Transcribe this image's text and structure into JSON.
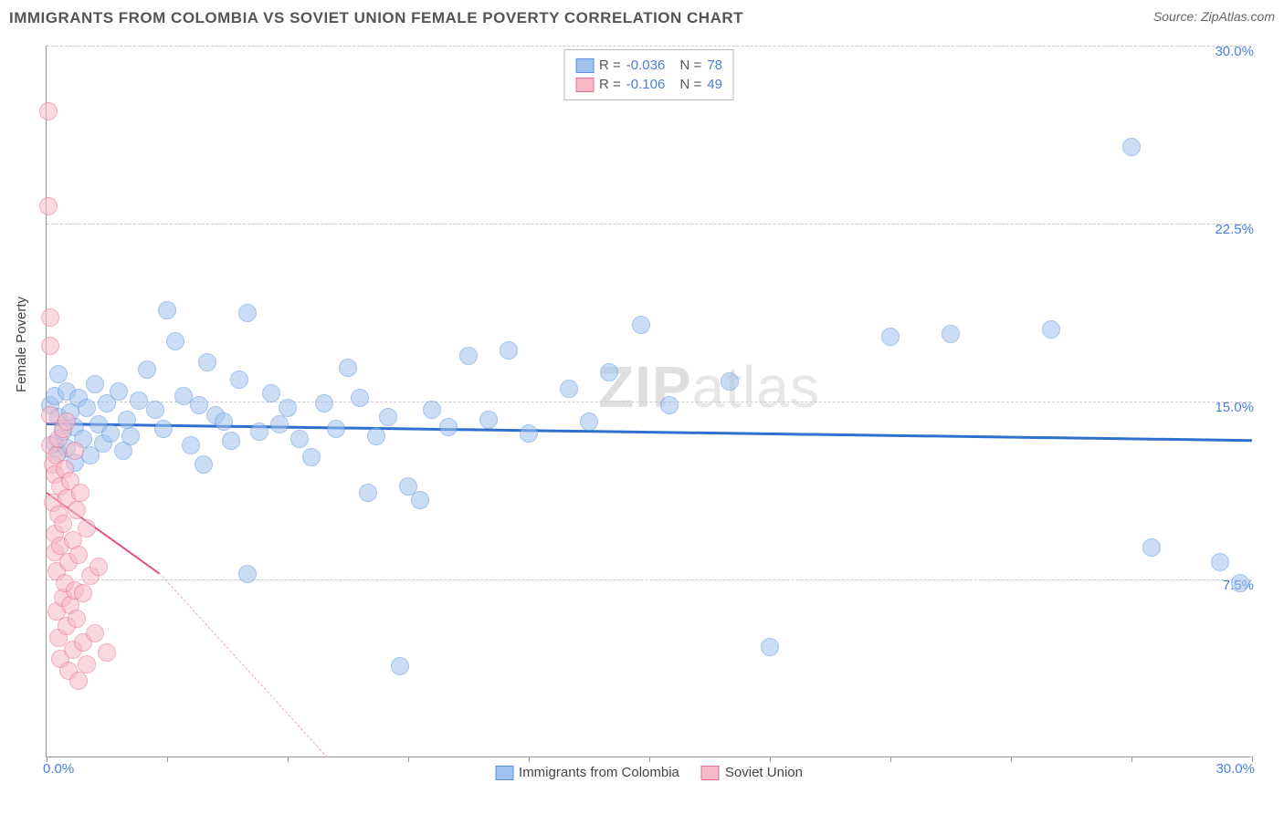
{
  "header": {
    "title": "IMMIGRANTS FROM COLOMBIA VS SOVIET UNION FEMALE POVERTY CORRELATION CHART",
    "source_label": "Source:",
    "source_name": "ZipAtlas.com"
  },
  "watermark": {
    "bold": "ZIP",
    "light": "atlas"
  },
  "chart": {
    "type": "scatter",
    "ylabel": "Female Poverty",
    "xlim": [
      0,
      30
    ],
    "ylim": [
      0,
      30
    ],
    "xtick_min": "0.0%",
    "xtick_max": "30.0%",
    "yticks": [
      {
        "v": 7.5,
        "label": "7.5%"
      },
      {
        "v": 15.0,
        "label": "15.0%"
      },
      {
        "v": 22.5,
        "label": "22.5%"
      },
      {
        "v": 30.0,
        "label": "30.0%"
      }
    ],
    "vticks_x": [
      0,
      3,
      6,
      9,
      12,
      15,
      18,
      21,
      24,
      27,
      30
    ],
    "background_color": "#ffffff",
    "grid_color": "#cccccc",
    "axis_color": "#999999",
    "tick_label_color": "#4a7fd8",
    "marker_radius": 10,
    "marker_opacity": 0.55,
    "series": [
      {
        "id": "colombia",
        "label": "Immigrants from Colombia",
        "fill": "#9fc2ee",
        "stroke": "#5a93dd",
        "R_label": "R =",
        "R": "-0.036",
        "N_label": "N =",
        "N": "78",
        "trend": {
          "x1": 0,
          "y1": 14.1,
          "x2": 30,
          "y2": 13.4,
          "color": "#2f6fd0",
          "width": 3,
          "dash": false
        },
        "points": [
          [
            0.1,
            14.8
          ],
          [
            0.2,
            13.2
          ],
          [
            0.2,
            15.2
          ],
          [
            0.3,
            14.3
          ],
          [
            0.3,
            12.8
          ],
          [
            0.3,
            16.1
          ],
          [
            0.4,
            13.7
          ],
          [
            0.5,
            15.4
          ],
          [
            0.5,
            13.0
          ],
          [
            0.6,
            14.5
          ],
          [
            0.7,
            12.4
          ],
          [
            0.7,
            13.9
          ],
          [
            0.8,
            15.1
          ],
          [
            0.9,
            13.4
          ],
          [
            1.0,
            14.7
          ],
          [
            1.1,
            12.7
          ],
          [
            1.2,
            15.7
          ],
          [
            1.3,
            14.0
          ],
          [
            1.4,
            13.2
          ],
          [
            1.5,
            14.9
          ],
          [
            1.6,
            13.6
          ],
          [
            1.8,
            15.4
          ],
          [
            1.9,
            12.9
          ],
          [
            2.0,
            14.2
          ],
          [
            2.1,
            13.5
          ],
          [
            2.3,
            15.0
          ],
          [
            2.5,
            16.3
          ],
          [
            2.7,
            14.6
          ],
          [
            2.9,
            13.8
          ],
          [
            3.0,
            18.8
          ],
          [
            3.2,
            17.5
          ],
          [
            3.4,
            15.2
          ],
          [
            3.6,
            13.1
          ],
          [
            3.8,
            14.8
          ],
          [
            3.9,
            12.3
          ],
          [
            4.0,
            16.6
          ],
          [
            4.2,
            14.4
          ],
          [
            4.4,
            14.1
          ],
          [
            4.6,
            13.3
          ],
          [
            4.8,
            15.9
          ],
          [
            5.0,
            18.7
          ],
          [
            5.3,
            13.7
          ],
          [
            5.6,
            15.3
          ],
          [
            5.8,
            14.0
          ],
          [
            6.0,
            14.7
          ],
          [
            6.3,
            13.4
          ],
          [
            6.6,
            12.6
          ],
          [
            6.9,
            14.9
          ],
          [
            7.2,
            13.8
          ],
          [
            7.5,
            16.4
          ],
          [
            7.8,
            15.1
          ],
          [
            8.0,
            11.1
          ],
          [
            8.2,
            13.5
          ],
          [
            8.5,
            14.3
          ],
          [
            8.8,
            3.8
          ],
          [
            9.0,
            11.4
          ],
          [
            9.3,
            10.8
          ],
          [
            9.6,
            14.6
          ],
          [
            10.0,
            13.9
          ],
          [
            10.5,
            16.9
          ],
          [
            11.0,
            14.2
          ],
          [
            11.5,
            17.1
          ],
          [
            12.0,
            13.6
          ],
          [
            13.0,
            15.5
          ],
          [
            13.5,
            14.1
          ],
          [
            14.0,
            16.2
          ],
          [
            14.8,
            18.2
          ],
          [
            15.5,
            14.8
          ],
          [
            17.0,
            15.8
          ],
          [
            18.0,
            4.6
          ],
          [
            21.0,
            17.7
          ],
          [
            22.5,
            17.8
          ],
          [
            25.0,
            18.0
          ],
          [
            27.0,
            25.7
          ],
          [
            27.5,
            8.8
          ],
          [
            29.2,
            8.2
          ],
          [
            29.7,
            7.3
          ],
          [
            5.0,
            7.7
          ]
        ]
      },
      {
        "id": "soviet",
        "label": "Soviet Union",
        "fill": "#f6b9c8",
        "stroke": "#e66f90",
        "R_label": "R =",
        "R": "-0.106",
        "N_label": "N =",
        "N": "49",
        "trend_solid": {
          "x1": 0,
          "y1": 11.2,
          "x2": 2.8,
          "y2": 7.8,
          "color": "#e05580",
          "width": 2
        },
        "trend_dash": {
          "x1": 2.8,
          "y1": 7.8,
          "x2": 7.0,
          "y2": 0.0,
          "color": "#f0a8ba",
          "width": 1
        },
        "points": [
          [
            0.1,
            18.5
          ],
          [
            0.1,
            17.3
          ],
          [
            0.1,
            14.4
          ],
          [
            0.1,
            13.1
          ],
          [
            0.15,
            12.3
          ],
          [
            0.15,
            10.7
          ],
          [
            0.2,
            11.9
          ],
          [
            0.2,
            9.4
          ],
          [
            0.2,
            8.6
          ],
          [
            0.25,
            12.7
          ],
          [
            0.25,
            7.8
          ],
          [
            0.25,
            6.1
          ],
          [
            0.3,
            13.4
          ],
          [
            0.3,
            10.2
          ],
          [
            0.3,
            5.0
          ],
          [
            0.35,
            11.4
          ],
          [
            0.35,
            8.9
          ],
          [
            0.35,
            4.1
          ],
          [
            0.4,
            13.8
          ],
          [
            0.4,
            9.8
          ],
          [
            0.4,
            6.7
          ],
          [
            0.45,
            12.1
          ],
          [
            0.45,
            7.3
          ],
          [
            0.5,
            14.1
          ],
          [
            0.5,
            10.9
          ],
          [
            0.5,
            5.5
          ],
          [
            0.55,
            8.2
          ],
          [
            0.55,
            3.6
          ],
          [
            0.6,
            11.6
          ],
          [
            0.6,
            6.4
          ],
          [
            0.65,
            9.1
          ],
          [
            0.65,
            4.5
          ],
          [
            0.7,
            12.9
          ],
          [
            0.7,
            7.0
          ],
          [
            0.75,
            10.4
          ],
          [
            0.75,
            5.8
          ],
          [
            0.8,
            8.5
          ],
          [
            0.8,
            3.2
          ],
          [
            0.85,
            11.1
          ],
          [
            0.9,
            6.9
          ],
          [
            0.9,
            4.8
          ],
          [
            1.0,
            9.6
          ],
          [
            1.0,
            3.9
          ],
          [
            1.1,
            7.6
          ],
          [
            1.2,
            5.2
          ],
          [
            1.3,
            8.0
          ],
          [
            1.5,
            4.4
          ],
          [
            0.05,
            27.2
          ],
          [
            0.05,
            23.2
          ]
        ]
      }
    ]
  },
  "legend_bottom": [
    {
      "swatch_fill": "#9fc2ee",
      "swatch_stroke": "#5a93dd",
      "label": "Immigrants from Colombia"
    },
    {
      "swatch_fill": "#f6b9c8",
      "swatch_stroke": "#e66f90",
      "label": "Soviet Union"
    }
  ]
}
